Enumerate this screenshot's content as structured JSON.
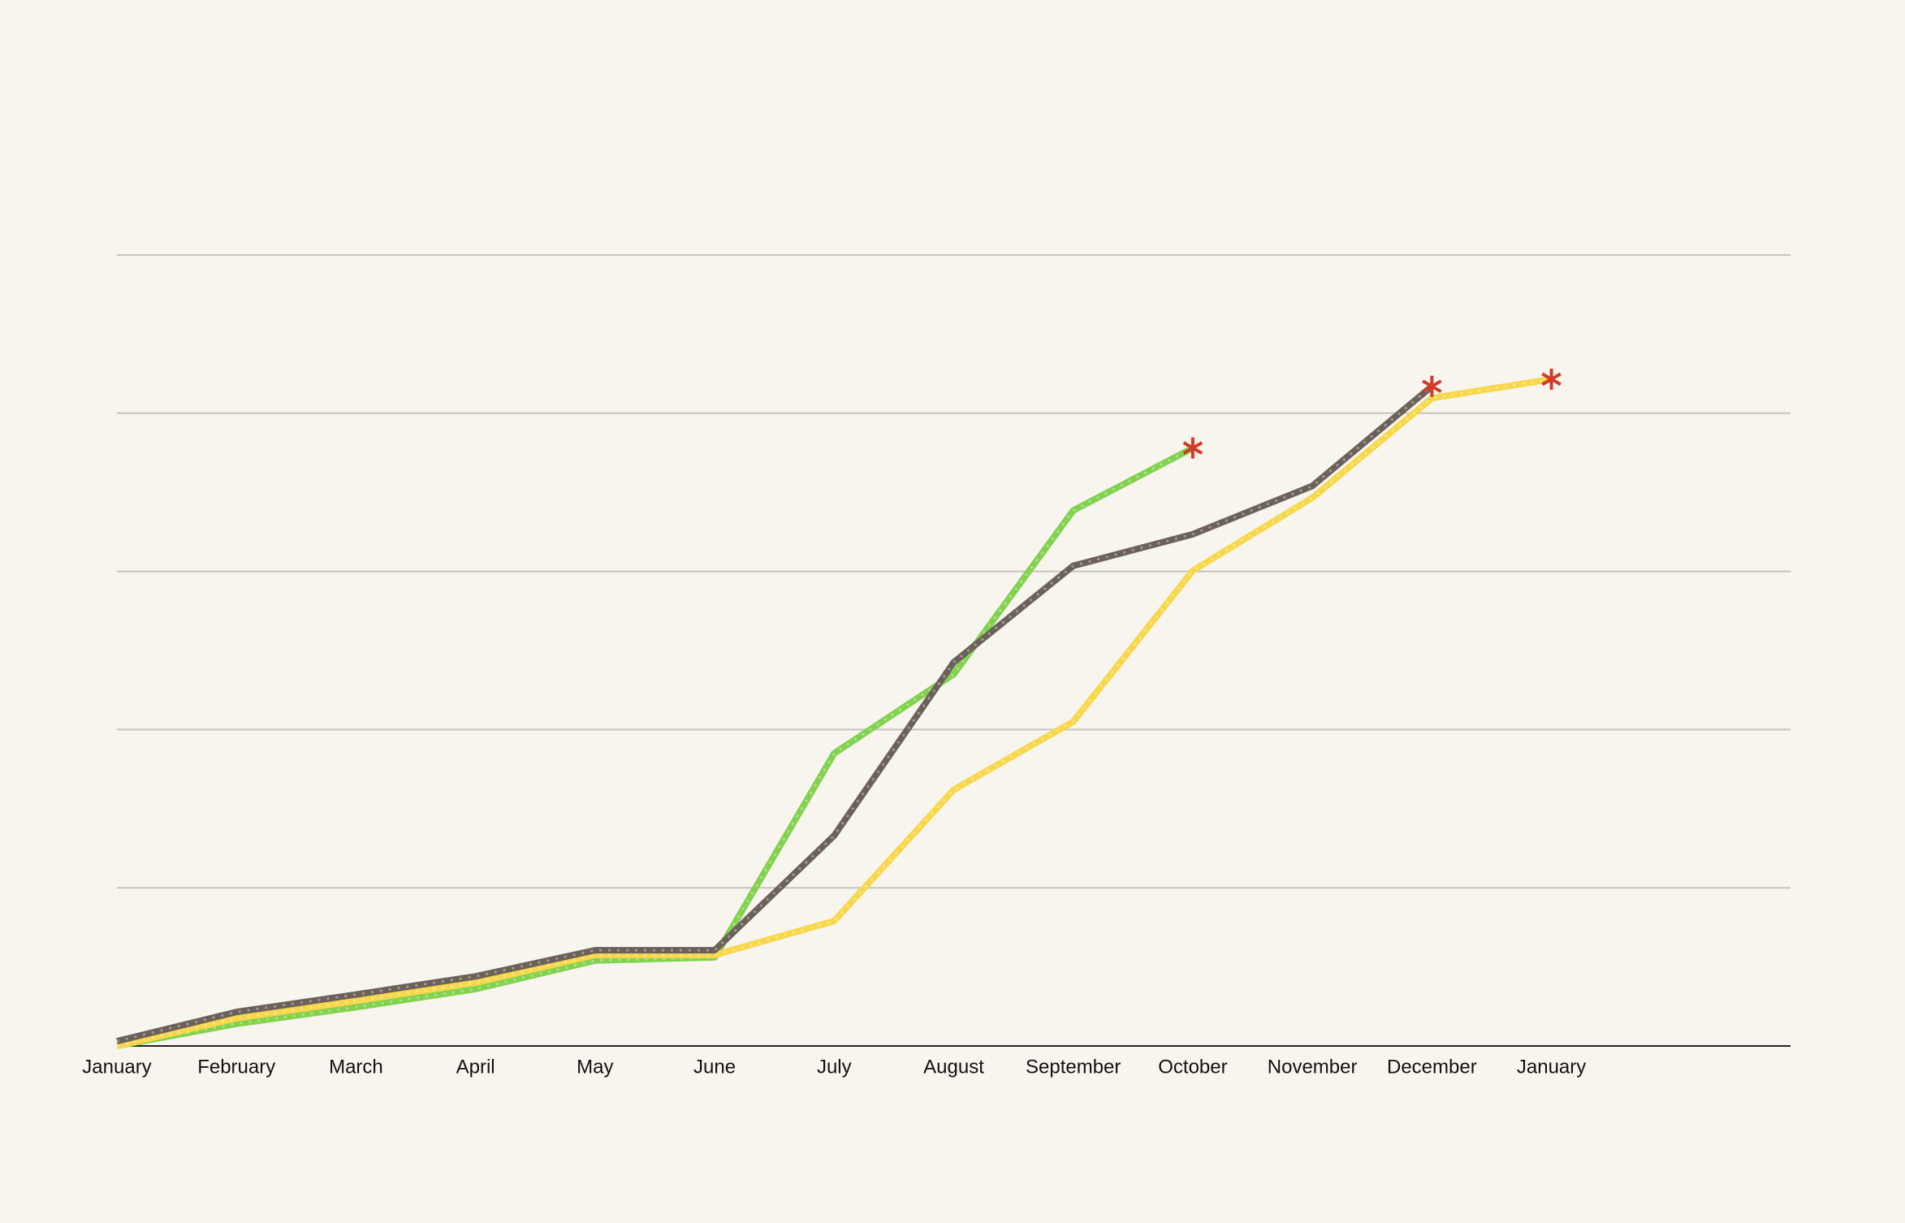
{
  "chart_data": {
    "type": "line",
    "categories": [
      "January",
      "February",
      "March",
      "April",
      "May",
      "June",
      "July",
      "August",
      "September",
      "October",
      "November",
      "December",
      "January",
      null,
      null
    ],
    "series": [
      {
        "color": "#82d24f",
        "values": [
          0,
          2.8,
          4.9,
          7.2,
          10.8,
          11.2,
          37.0,
          47.0,
          67.7,
          75.6,
          null,
          null,
          null,
          null,
          null
        ]
      },
      {
        "color": "#f7d84c",
        "values": [
          0,
          3.5,
          5.7,
          8.0,
          11.5,
          11.5,
          15.8,
          32.4,
          41.0,
          60.1,
          69.3,
          81.9,
          84.3,
          null,
          null
        ]
      },
      {
        "color": "#6b6158",
        "values": [
          0.6,
          4.3,
          6.5,
          8.8,
          12.1,
          12.1,
          26.6,
          48.5,
          60.7,
          64.7,
          70.8,
          83.4,
          null,
          null,
          null
        ]
      }
    ],
    "ylim": [
      0,
      100
    ],
    "yticks": [
      20,
      40,
      60,
      80,
      100
    ],
    "grid": true,
    "marker_color": "#d13b28"
  }
}
